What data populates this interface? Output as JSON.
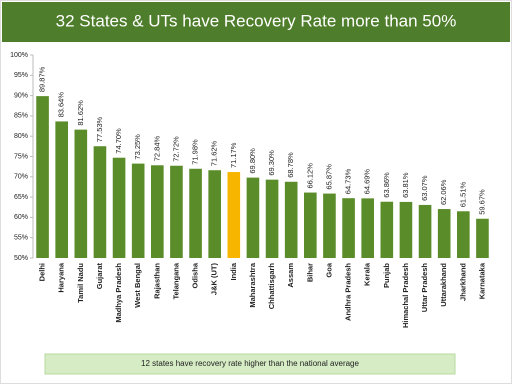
{
  "chart_data": {
    "type": "bar",
    "title": "32 States & UTs have Recovery Rate more than 50%",
    "note": "12 states have recovery rate higher than the national average",
    "categories": [
      "Delhi",
      "Haryana",
      "Tamil Nadu",
      "Gujarat",
      "Madhya Pradesh",
      "West Bengal",
      "Rajasthan",
      "Telangana",
      "Odisha",
      "J&K (UT)",
      "India",
      "Maharashtra",
      "Chhattisgarh",
      "Assam",
      "Bihar",
      "Goa",
      "Andhra Pradesh",
      "Kerala",
      "Punjab",
      "Himachal Pradesh",
      "Uttar Pradesh",
      "Uttarakhand",
      "Jharkhand",
      "Karnataka"
    ],
    "values": [
      89.87,
      83.64,
      81.62,
      77.53,
      74.7,
      73.25,
      72.84,
      72.72,
      71.98,
      71.62,
      71.17,
      69.8,
      69.3,
      68.78,
      66.12,
      65.87,
      64.73,
      64.69,
      63.86,
      63.81,
      63.07,
      62.06,
      61.51,
      59.67
    ],
    "value_labels": [
      "89.87%",
      "83.64%",
      "81.62%",
      "77.53%",
      "74.70%",
      "73.25%",
      "72.84%",
      "72.72%",
      "71.98%",
      "71.62%",
      "71.17%",
      "69.80%",
      "69.30%",
      "68.78%",
      "66.12%",
      "65.87%",
      "64.73%",
      "64.69%",
      "63.86%",
      "63.81%",
      "63.07%",
      "62.06%",
      "61.51%",
      "59.67%"
    ],
    "colors": [
      "#5b8c2a",
      "#5b8c2a",
      "#5b8c2a",
      "#5b8c2a",
      "#5b8c2a",
      "#5b8c2a",
      "#5b8c2a",
      "#5b8c2a",
      "#5b8c2a",
      "#5b8c2a",
      "#f7b500",
      "#5b8c2a",
      "#5b8c2a",
      "#5b8c2a",
      "#5b8c2a",
      "#5b8c2a",
      "#5b8c2a",
      "#5b8c2a",
      "#5b8c2a",
      "#5b8c2a",
      "#5b8c2a",
      "#5b8c2a",
      "#5b8c2a",
      "#5b8c2a"
    ],
    "ylim": [
      50,
      100
    ],
    "yticks": [
      {
        "value": 50,
        "label": "50%"
      },
      {
        "value": 55,
        "label": "55%"
      },
      {
        "value": 60,
        "label": "60%"
      },
      {
        "value": 65,
        "label": "65%"
      },
      {
        "value": 70,
        "label": "70%"
      },
      {
        "value": 75,
        "label": "75%"
      },
      {
        "value": 80,
        "label": "80%"
      },
      {
        "value": 85,
        "label": "85%"
      },
      {
        "value": 90,
        "label": "90%"
      },
      {
        "value": 95,
        "label": "95%"
      },
      {
        "value": 100,
        "label": "100%"
      }
    ],
    "grid": false
  }
}
